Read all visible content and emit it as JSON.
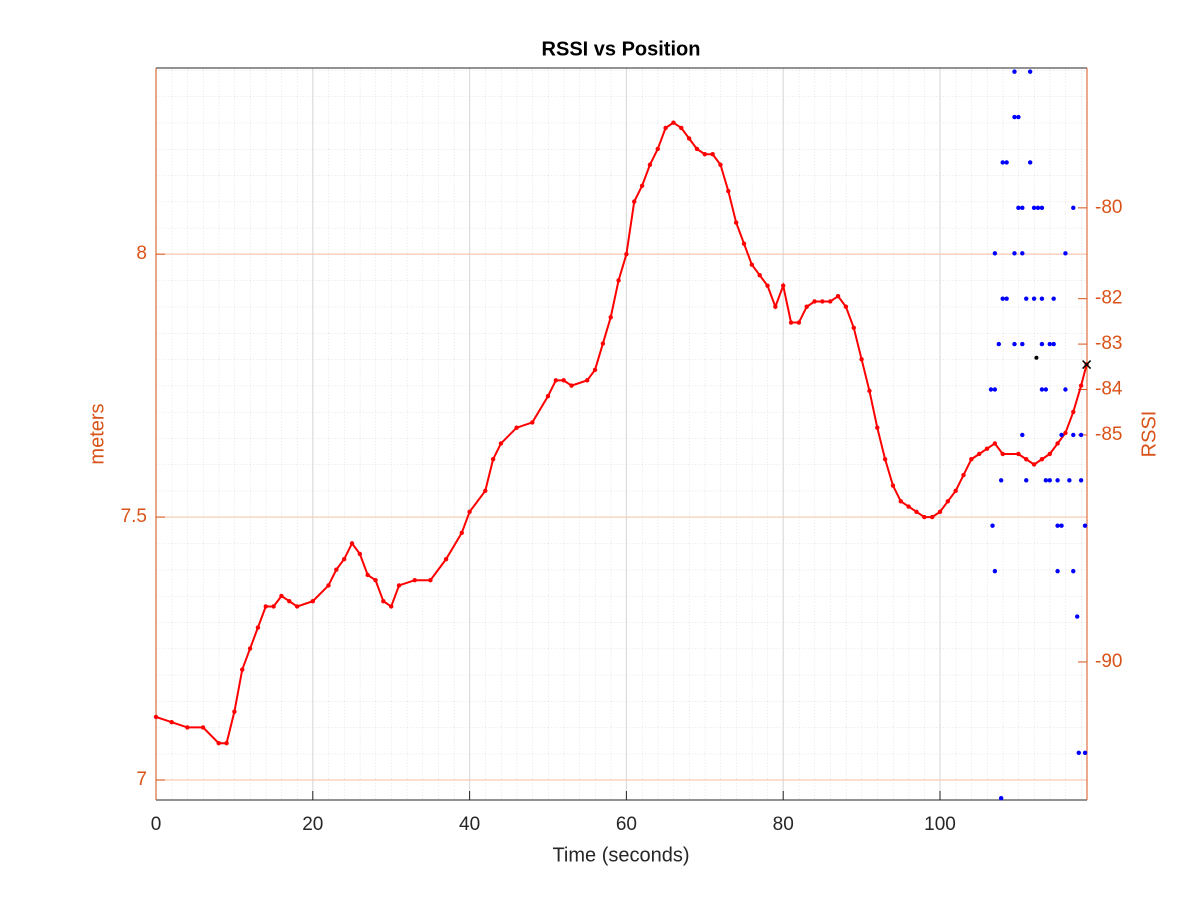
{
  "chart_data": {
    "type": "line",
    "title": "RSSI vs Position",
    "x_label": "Time (seconds)",
    "y_label": "meters",
    "y2_label": "RSSI",
    "xlim": [
      0,
      118.75
    ],
    "xticks": [
      0,
      20,
      40,
      60,
      80,
      100
    ],
    "ylim": [
      6.962,
      8.354
    ],
    "yticks": [
      7,
      7.5,
      8
    ],
    "y2lim": [
      -93.04,
      -76.92
    ],
    "y2ticks": [
      -90,
      -85,
      -84,
      -83,
      -82,
      -80
    ],
    "grid": true,
    "minor_grid": true,
    "x": [
      0,
      2,
      4,
      6,
      8,
      9,
      10,
      11,
      12,
      13,
      14,
      15,
      16,
      17,
      18,
      20,
      22,
      23,
      24,
      25,
      26,
      27,
      28,
      29,
      30,
      31,
      33,
      35,
      37,
      39,
      40,
      42,
      43,
      44,
      46,
      48,
      50,
      51,
      52,
      53,
      55,
      56,
      57,
      58,
      59,
      60,
      61,
      62,
      63,
      64,
      65,
      66,
      67,
      68,
      69,
      70,
      71,
      72,
      73,
      74,
      75,
      76,
      77,
      78,
      79,
      80,
      81,
      82,
      83,
      84,
      85,
      86,
      87,
      88,
      89,
      90,
      91,
      92,
      93,
      94,
      95,
      96,
      97,
      98,
      99,
      100,
      101,
      102,
      103,
      104,
      105,
      106,
      107,
      108,
      110,
      111,
      112,
      113,
      114,
      115,
      116,
      117,
      118,
      118.7
    ],
    "series": [
      {
        "color": "#ff0000",
        "values": [
          7.12,
          7.11,
          7.1,
          7.1,
          7.07,
          7.07,
          7.13,
          7.21,
          7.25,
          7.29,
          7.33,
          7.33,
          7.35,
          7.34,
          7.33,
          7.34,
          7.37,
          7.4,
          7.42,
          7.45,
          7.43,
          7.39,
          7.38,
          7.34,
          7.33,
          7.37,
          7.38,
          7.38,
          7.42,
          7.47,
          7.51,
          7.55,
          7.61,
          7.64,
          7.67,
          7.68,
          7.73,
          7.76,
          7.76,
          7.75,
          7.76,
          7.78,
          7.83,
          7.88,
          7.95,
          8.0,
          8.1,
          8.13,
          8.17,
          8.2,
          8.24,
          8.25,
          8.24,
          8.22,
          8.2,
          8.19,
          8.19,
          8.17,
          8.12,
          8.06,
          8.02,
          7.98,
          7.96,
          7.94,
          7.9,
          7.94,
          7.87,
          7.87,
          7.9,
          7.91,
          7.91,
          7.91,
          7.92,
          7.9,
          7.86,
          7.8,
          7.74,
          7.67,
          7.61,
          7.56,
          7.53,
          7.52,
          7.51,
          7.5,
          7.5,
          7.51,
          7.53,
          7.55,
          7.58,
          7.61,
          7.62,
          7.63,
          7.64,
          7.62,
          7.62,
          7.61,
          7.6,
          7.61,
          7.62,
          7.64,
          7.66,
          7.7,
          7.75,
          7.79
        ]
      },
      {
        "color": "#0000ff",
        "axis": "y2",
        "line": false,
        "x": [
          106.5,
          107,
          107,
          106.7,
          107,
          107.8,
          107.8,
          107.5,
          108,
          108.5,
          108,
          108.5,
          109.5,
          109.5,
          110,
          110,
          110.5,
          109.5,
          110.5,
          109.5,
          110.5,
          110.5,
          111,
          111,
          111.5,
          111.5,
          112,
          112,
          112.5,
          113,
          113,
          113,
          113.5,
          113.5,
          113,
          114,
          114,
          114.5,
          114.5,
          115,
          115,
          115,
          115.5,
          115.5,
          116,
          116,
          116.5,
          117,
          117,
          117,
          117.5,
          117.7,
          118,
          118,
          118.5,
          118.5
        ],
        "values": [
          -84,
          -84,
          -81,
          -87,
          -88,
          -93,
          -86,
          -83,
          -82,
          -82,
          -79,
          -79,
          -77,
          -78,
          -78,
          -80,
          -80,
          -81,
          -81,
          -83,
          -85,
          -83,
          -82,
          -86,
          -77,
          -79,
          -80,
          -82,
          -80,
          -80,
          -82,
          -84,
          -84,
          -86,
          -83,
          -86,
          -83,
          -82,
          -83,
          -86,
          -87,
          -88,
          -85,
          -87,
          -81,
          -84,
          -86,
          -80,
          -85,
          -88,
          -89,
          -92,
          -85,
          -86,
          -87,
          -92
        ]
      }
    ],
    "markers": [
      {
        "x": 118.7,
        "y": 7.79,
        "symbol": "x",
        "color": "#000000"
      },
      {
        "x": 112.3,
        "y": -83.3,
        "axis": "y2",
        "symbol": "dot",
        "color": "#000000"
      }
    ]
  }
}
